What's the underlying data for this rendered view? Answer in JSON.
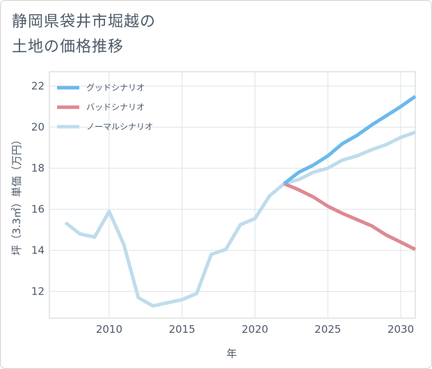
{
  "title_line1": "静岡県袋井市堀越の",
  "title_line2": "土地の価格推移",
  "chart_data": {
    "type": "line",
    "title": "静岡県袋井市堀越の土地の価格推移",
    "xlabel": "年",
    "ylabel": "坪（3.3㎡）単価（万円）",
    "xlim": [
      2005.9,
      2031
    ],
    "ylim": [
      10.7,
      22.7
    ],
    "xticks": [
      2010,
      2015,
      2020,
      2025,
      2030
    ],
    "yticks": [
      12,
      14,
      16,
      18,
      20,
      22
    ],
    "grid": true,
    "legend_position": "top-left",
    "series": [
      {
        "name": "グッドシナリオ",
        "color": "#6bb9ec",
        "x": [
          2022,
          2023,
          2024,
          2025,
          2026,
          2027,
          2028,
          2029,
          2030,
          2031
        ],
        "y": [
          17.25,
          17.8,
          18.15,
          18.6,
          19.2,
          19.6,
          20.1,
          20.55,
          21.0,
          21.5
        ]
      },
      {
        "name": "バッドシナリオ",
        "color": "#dc8a93",
        "x": [
          2022,
          2023,
          2024,
          2025,
          2026,
          2027,
          2028,
          2029,
          2030,
          2031
        ],
        "y": [
          17.25,
          16.95,
          16.6,
          16.15,
          15.8,
          15.5,
          15.2,
          14.75,
          14.4,
          14.05
        ]
      },
      {
        "name": "ノーマルシナリオ",
        "color": "#bfdcec",
        "x": [
          2007,
          2008,
          2009,
          2010,
          2011,
          2012,
          2013,
          2014,
          2015,
          2016,
          2017,
          2018,
          2019,
          2020,
          2021,
          2022,
          2023,
          2024,
          2025,
          2026,
          2027,
          2028,
          2029,
          2030,
          2031
        ],
        "y": [
          15.35,
          14.8,
          14.65,
          15.9,
          14.3,
          11.7,
          11.3,
          11.45,
          11.6,
          11.9,
          13.8,
          14.05,
          15.25,
          15.55,
          16.65,
          17.25,
          17.45,
          17.8,
          18.0,
          18.4,
          18.6,
          18.9,
          19.15,
          19.5,
          19.75
        ]
      }
    ]
  }
}
